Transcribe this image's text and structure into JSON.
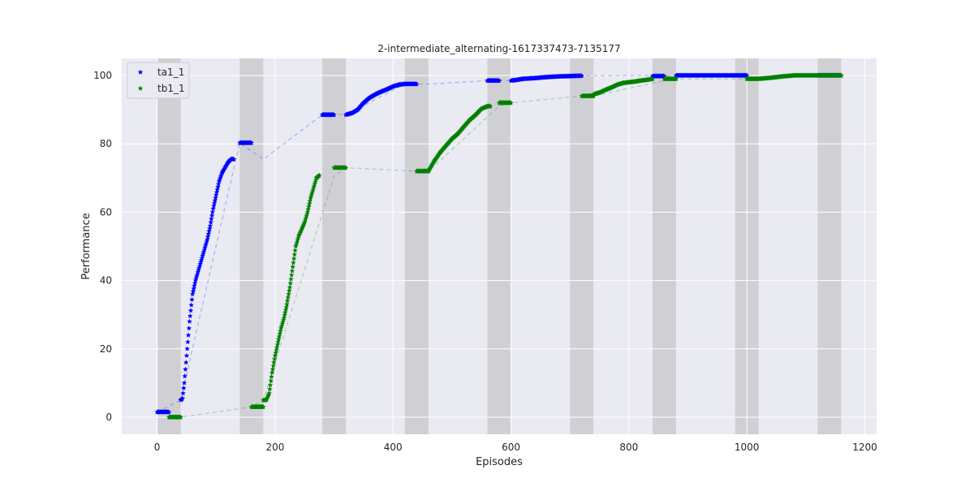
{
  "chart_data": {
    "type": "scatter",
    "title": "2-intermediate_alternating-1617337473-7135177",
    "xlabel": "Episodes",
    "ylabel": "Performance",
    "xlim": [
      -60,
      1220
    ],
    "ylim": [
      -5,
      105
    ],
    "xticks": [
      0,
      200,
      400,
      600,
      800,
      1000,
      1200
    ],
    "yticks": [
      0,
      20,
      40,
      60,
      80,
      100
    ],
    "grid": true,
    "legend_position": "top-left",
    "shaded_regions": [
      [
        0,
        40
      ],
      [
        140,
        180
      ],
      [
        280,
        320
      ],
      [
        420,
        460
      ],
      [
        560,
        600
      ],
      [
        700,
        740
      ],
      [
        840,
        880
      ],
      [
        980,
        1020
      ],
      [
        1120,
        1160
      ]
    ],
    "series": [
      {
        "name": "ta1_1",
        "color": "#0000ff",
        "marker": "star",
        "eval_points": [
          [
            0,
            1.5
          ],
          [
            40,
            5
          ],
          [
            140,
            80.3
          ],
          [
            180,
            75.5
          ],
          [
            280,
            88.5
          ],
          [
            320,
            88.5
          ],
          [
            420,
            97.5
          ],
          [
            460,
            97.5
          ],
          [
            560,
            98.5
          ],
          [
            600,
            98.5
          ],
          [
            700,
            100
          ],
          [
            740,
            100
          ],
          [
            840,
            100
          ],
          [
            880,
            100
          ],
          [
            980,
            100
          ],
          [
            1020,
            99
          ],
          [
            1120,
            100
          ],
          [
            1160,
            100
          ]
        ],
        "segments": [
          [
            [
              0,
              1.5
            ],
            [
              20,
              1.5
            ]
          ],
          [
            [
              40,
              5
            ],
            [
              43,
              5.5
            ],
            [
              46,
              10
            ],
            [
              50,
              18
            ],
            [
              55,
              28
            ],
            [
              60,
              36
            ],
            [
              65,
              40
            ],
            [
              70,
              43
            ],
            [
              75,
              46
            ],
            [
              80,
              49
            ],
            [
              85,
              52
            ],
            [
              90,
              56
            ],
            [
              95,
              61
            ],
            [
              100,
              65
            ],
            [
              105,
              69
            ],
            [
              110,
              71.5
            ],
            [
              115,
              73
            ],
            [
              120,
              74.5
            ],
            [
              125,
              75.5
            ],
            [
              130,
              75.5
            ]
          ],
          [
            [
              140,
              80.3
            ],
            [
              160,
              80.3
            ]
          ],
          [
            [
              280,
              88.5
            ],
            [
              300,
              88.5
            ]
          ],
          [
            [
              320,
              88.5
            ],
            [
              330,
              89
            ],
            [
              340,
              90
            ],
            [
              350,
              92
            ],
            [
              360,
              93.5
            ],
            [
              370,
              94.5
            ],
            [
              380,
              95.3
            ],
            [
              390,
              96
            ],
            [
              400,
              96.8
            ],
            [
              410,
              97.3
            ],
            [
              420,
              97.5
            ],
            [
              430,
              97.5
            ],
            [
              440,
              97.5
            ]
          ],
          [
            [
              560,
              98.5
            ],
            [
              580,
              98.5
            ]
          ],
          [
            [
              600,
              98.5
            ],
            [
              610,
              98.7
            ],
            [
              620,
              99
            ],
            [
              640,
              99.2
            ],
            [
              660,
              99.5
            ],
            [
              680,
              99.7
            ],
            [
              700,
              99.8
            ],
            [
              720,
              99.9
            ]
          ],
          [
            [
              840,
              99.8
            ],
            [
              860,
              99.8
            ]
          ],
          [
            [
              880,
              100
            ],
            [
              900,
              100
            ],
            [
              920,
              100
            ],
            [
              940,
              100
            ],
            [
              960,
              100
            ],
            [
              980,
              100
            ],
            [
              1000,
              100
            ]
          ],
          [
            [
              1120,
              100
            ],
            [
              1140,
              100
            ],
            [
              1160,
              100
            ]
          ]
        ]
      },
      {
        "name": "tb1_1",
        "color": "#008000",
        "marker": "star",
        "eval_points": [
          [
            20,
            0
          ],
          [
            40,
            0
          ],
          [
            160,
            3
          ],
          [
            180,
            5
          ],
          [
            300,
            70.5
          ],
          [
            320,
            73
          ],
          [
            440,
            72
          ],
          [
            460,
            72
          ],
          [
            580,
            91
          ],
          [
            600,
            92
          ],
          [
            720,
            94
          ],
          [
            740,
            94
          ],
          [
            860,
            98.5
          ],
          [
            880,
            99
          ],
          [
            1000,
            99
          ],
          [
            1020,
            99
          ],
          [
            1140,
            100
          ],
          [
            1160,
            100
          ]
        ],
        "segments": [
          [
            [
              20,
              0
            ],
            [
              40,
              0
            ]
          ],
          [
            [
              160,
              3
            ],
            [
              180,
              3
            ]
          ],
          [
            [
              180,
              5
            ],
            [
              185,
              5
            ],
            [
              190,
              7
            ],
            [
              195,
              13
            ],
            [
              200,
              18
            ],
            [
              205,
              22
            ],
            [
              210,
              26
            ],
            [
              215,
              29
            ],
            [
              220,
              33
            ],
            [
              225,
              38
            ],
            [
              230,
              44
            ],
            [
              235,
              50
            ],
            [
              240,
              53
            ],
            [
              245,
              55
            ],
            [
              250,
              57
            ],
            [
              255,
              60
            ],
            [
              260,
              64
            ],
            [
              265,
              67
            ],
            [
              270,
              70
            ],
            [
              275,
              70.8
            ]
          ],
          [
            [
              300,
              73
            ],
            [
              320,
              73
            ]
          ],
          [
            [
              440,
              72
            ],
            [
              460,
              72
            ]
          ],
          [
            [
              460,
              72
            ],
            [
              465,
              73.5
            ],
            [
              470,
              75
            ],
            [
              480,
              77.5
            ],
            [
              490,
              79.5
            ],
            [
              500,
              81.5
            ],
            [
              510,
              83
            ],
            [
              520,
              85
            ],
            [
              530,
              87
            ],
            [
              540,
              88.5
            ],
            [
              550,
              90.3
            ],
            [
              560,
              91
            ],
            [
              565,
              91
            ]
          ],
          [
            [
              580,
              92
            ],
            [
              600,
              92
            ]
          ],
          [
            [
              720,
              94
            ],
            [
              740,
              94
            ]
          ],
          [
            [
              740,
              94.5
            ],
            [
              750,
              95
            ],
            [
              760,
              95.8
            ],
            [
              770,
              96.5
            ],
            [
              780,
              97.3
            ],
            [
              790,
              97.8
            ],
            [
              800,
              98
            ],
            [
              810,
              98.2
            ],
            [
              820,
              98.5
            ],
            [
              830,
              98.7
            ],
            [
              840,
              99
            ]
          ],
          [
            [
              860,
              99
            ],
            [
              880,
              99
            ]
          ],
          [
            [
              1000,
              99
            ],
            [
              1020,
              99
            ]
          ],
          [
            [
              1020,
              99
            ],
            [
              1040,
              99.3
            ],
            [
              1060,
              99.7
            ],
            [
              1080,
              100
            ],
            [
              1100,
              100
            ],
            [
              1120,
              100
            ],
            [
              1140,
              100
            ],
            [
              1160,
              100
            ]
          ]
        ]
      }
    ]
  }
}
